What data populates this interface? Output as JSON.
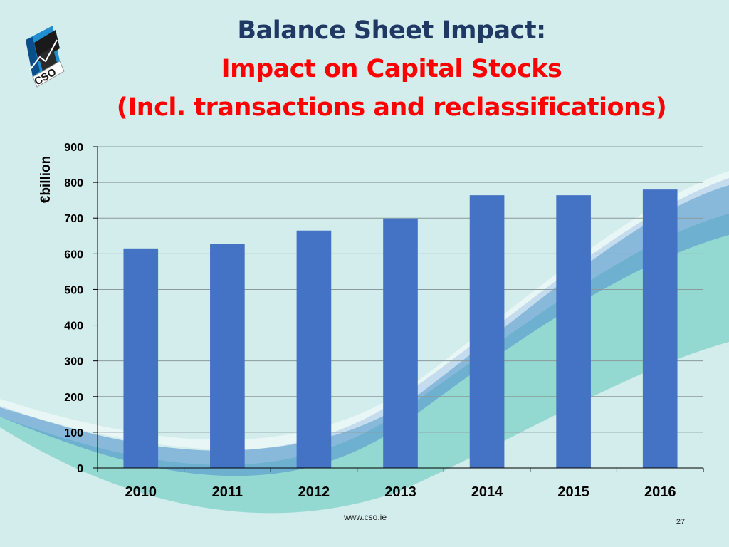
{
  "slide": {
    "title": "Balance Sheet Impact:",
    "subtitle_line1": "Impact on Capital Stocks",
    "subtitle_line2": "(Incl. transactions and reclassifications)",
    "footer_url": "www.cso.ie",
    "page_number": "27",
    "logo_text": "CSO"
  },
  "colors": {
    "background": "#d3ecec",
    "title": "#1f3864",
    "subtitle": "#ff0000",
    "bar": "#4472c4",
    "gridline": "#8c9a9a"
  },
  "chart_data": {
    "type": "bar",
    "title": "",
    "xlabel": "",
    "ylabel": "€billion",
    "categories": [
      "2010",
      "2011",
      "2012",
      "2013",
      "2014",
      "2015",
      "2016"
    ],
    "series": [
      {
        "values": [
          615,
          628,
          665,
          699,
          764,
          764,
          780
        ]
      }
    ],
    "ylim": [
      0,
      900
    ],
    "yticks": [
      0,
      100,
      200,
      300,
      400,
      500,
      600,
      700,
      800,
      900
    ],
    "grid": true,
    "legend": "none"
  }
}
